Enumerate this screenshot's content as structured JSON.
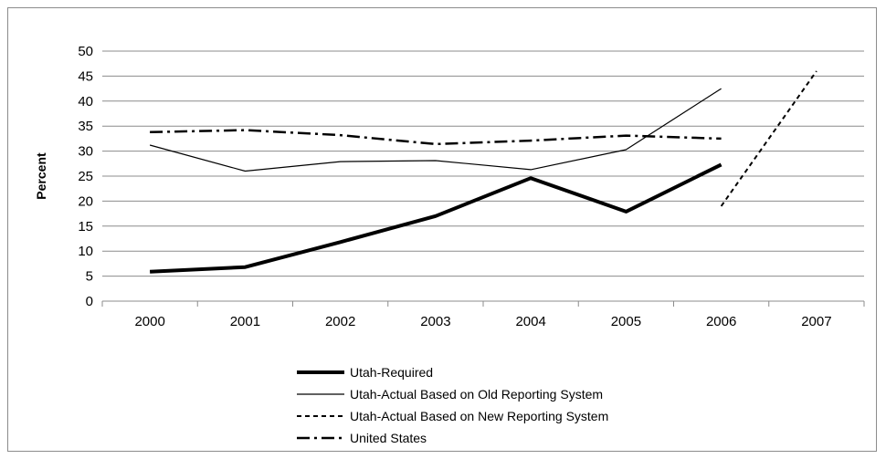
{
  "chart_data": {
    "type": "line",
    "title": "",
    "xlabel": "",
    "ylabel": "Percent",
    "categories": [
      "2000",
      "2001",
      "2002",
      "2003",
      "2004",
      "2005",
      "2006",
      "2007"
    ],
    "ylim": [
      0,
      50
    ],
    "yticks": [
      0,
      5,
      10,
      15,
      20,
      25,
      30,
      35,
      40,
      45,
      50
    ],
    "grid": "horizontal",
    "legend_position": "bottom",
    "series": [
      {
        "name": "Utah-Required",
        "style": "solid-thick",
        "color": "#000000",
        "values": [
          5.9,
          6.8,
          11.8,
          17.0,
          24.6,
          17.9,
          27.3,
          null
        ]
      },
      {
        "name": "Utah-Actual Based on Old Reporting System",
        "style": "solid-thin",
        "color": "#000000",
        "values": [
          31.2,
          26.0,
          27.9,
          28.1,
          26.3,
          30.3,
          42.5,
          null
        ]
      },
      {
        "name": "Utah-Actual Based on New Reporting System",
        "style": "dashed",
        "color": "#000000",
        "values": [
          null,
          null,
          null,
          null,
          null,
          null,
          19.0,
          46.0
        ]
      },
      {
        "name": "United States",
        "style": "dash-dot",
        "color": "#000000",
        "values": [
          33.8,
          34.2,
          33.2,
          31.4,
          32.1,
          33.1,
          32.5,
          null
        ]
      }
    ]
  }
}
